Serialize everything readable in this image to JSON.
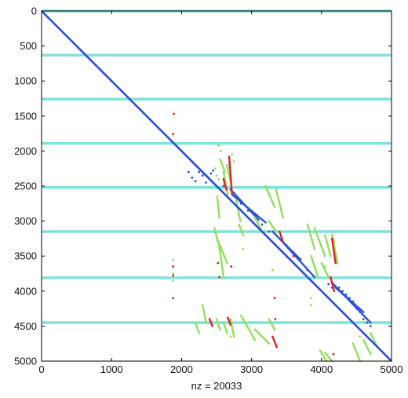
{
  "chart_data": {
    "type": "scatter",
    "title": "",
    "xlabel": "nz = 20033",
    "ylabel": "",
    "xlim": [
      0,
      5000
    ],
    "ylim": [
      0,
      5000
    ],
    "y_reversed": true,
    "grid": false,
    "legend": "none",
    "x_ticks": [
      0,
      1000,
      2000,
      3000,
      4000,
      5000
    ],
    "y_ticks": [
      0,
      500,
      1000,
      1500,
      2000,
      2500,
      3000,
      3500,
      4000,
      4500,
      5000
    ],
    "separators": {
      "color": "#7fe3dd",
      "y": [
        0,
        630,
        1260,
        1890,
        2520,
        3150,
        3810,
        4450
      ]
    },
    "diagonal": {
      "color": "#2a4fd8",
      "from": [
        0,
        0
      ],
      "to": [
        5000,
        5000
      ]
    },
    "series": [
      {
        "color": "#2a4fd8",
        "segments": [
          [
            2150,
            2150,
            2500,
            2500
          ],
          [
            2700,
            2550,
            3100,
            2980
          ],
          [
            2720,
            2620,
            3200,
            3020
          ],
          [
            3400,
            3250,
            3900,
            3800
          ],
          [
            3300,
            3150,
            3700,
            3550
          ],
          [
            4150,
            3880,
            4700,
            4450
          ],
          [
            4200,
            3950,
            4600,
            4300
          ]
        ],
        "points": [
          [
            2100,
            2300
          ],
          [
            2150,
            2380
          ],
          [
            2200,
            2430
          ],
          [
            2250,
            2300
          ],
          [
            2300,
            2350
          ],
          [
            2350,
            2450
          ],
          [
            2420,
            2320
          ],
          [
            2450,
            2280
          ],
          [
            2600,
            2500
          ],
          [
            2750,
            2600
          ],
          [
            2850,
            2750
          ],
          [
            2950,
            2850
          ],
          [
            3050,
            2950
          ],
          [
            3150,
            3050
          ],
          [
            3250,
            3150
          ],
          [
            3500,
            3350
          ],
          [
            3600,
            3450
          ],
          [
            3700,
            3550
          ],
          [
            3800,
            3700
          ],
          [
            4100,
            3900
          ],
          [
            4150,
            3950
          ],
          [
            4250,
            3950
          ],
          [
            4300,
            4000
          ],
          [
            4350,
            4050
          ],
          [
            4400,
            4100
          ],
          [
            4450,
            4150
          ],
          [
            4500,
            4250
          ],
          [
            4550,
            4300
          ],
          [
            4600,
            4400
          ],
          [
            4650,
            4450
          ],
          [
            4700,
            4500
          ]
        ]
      },
      {
        "color": "#8ee05a",
        "segments": [
          [
            2550,
            2120,
            2620,
            2300
          ],
          [
            2600,
            2300,
            2660,
            2620
          ],
          [
            2650,
            2200,
            2700,
            2450
          ],
          [
            2510,
            2650,
            2540,
            2950
          ],
          [
            2470,
            3100,
            2520,
            3300
          ],
          [
            2530,
            3300,
            2600,
            3800
          ],
          [
            2780,
            2700,
            2840,
            3000
          ],
          [
            2820,
            3050,
            2880,
            3200
          ],
          [
            3200,
            2500,
            3330,
            2800
          ],
          [
            3350,
            2550,
            3450,
            2950
          ],
          [
            3050,
            2950,
            3150,
            3150
          ],
          [
            3250,
            3000,
            3350,
            3150
          ],
          [
            3800,
            3050,
            3900,
            3400
          ],
          [
            3900,
            3100,
            4050,
            3500
          ],
          [
            4050,
            3200,
            4130,
            3500
          ],
          [
            4150,
            3200,
            4180,
            3300
          ],
          [
            4170,
            3300,
            4230,
            3600
          ],
          [
            3850,
            3500,
            3950,
            3800
          ],
          [
            4000,
            3600,
            4100,
            3800
          ],
          [
            2300,
            4200,
            2350,
            4450
          ],
          [
            2200,
            4450,
            2250,
            4600
          ],
          [
            2500,
            4400,
            2550,
            4550
          ],
          [
            2600,
            4450,
            2650,
            4600
          ],
          [
            2850,
            4350,
            3050,
            4700
          ],
          [
            3050,
            4550,
            3250,
            4750
          ],
          [
            3250,
            4400,
            3330,
            4550
          ],
          [
            3980,
            4850,
            4070,
            5000
          ],
          [
            4050,
            4880,
            4150,
            5000
          ],
          [
            4450,
            4750,
            4550,
            5000
          ],
          [
            4600,
            4700,
            4700,
            4900
          ],
          [
            4700,
            4600,
            4800,
            4800
          ],
          [
            2700,
            4400,
            2750,
            4650
          ],
          [
            2550,
            3350,
            2650,
            3600
          ]
        ],
        "points": [
          [
            2530,
            1920
          ],
          [
            2560,
            2000
          ],
          [
            2480,
            2250
          ],
          [
            2500,
            2350
          ],
          [
            2530,
            2400
          ],
          [
            2720,
            2050
          ],
          [
            2750,
            2150
          ],
          [
            4050,
            3650
          ],
          [
            2880,
            3400
          ],
          [
            3300,
            3700
          ],
          [
            2700,
            4650
          ],
          [
            4550,
            4650
          ],
          [
            1880,
            3550
          ],
          [
            1880,
            3650
          ],
          [
            1880,
            3750
          ],
          [
            1880,
            3850
          ],
          [
            3850,
            4100
          ],
          [
            3850,
            4200
          ]
        ]
      },
      {
        "color": "#e02020",
        "segments": [
          [
            2680,
            2080,
            2720,
            2600
          ],
          [
            2600,
            2400,
            2640,
            2550
          ],
          [
            3400,
            3150,
            3450,
            3300
          ],
          [
            4150,
            3250,
            4200,
            3600
          ],
          [
            4130,
            3800,
            4180,
            4000
          ],
          [
            2400,
            4400,
            2440,
            4500
          ],
          [
            2660,
            4380,
            2700,
            4480
          ],
          [
            3300,
            4650,
            3360,
            4800
          ]
        ],
        "points": [
          [
            1890,
            1470
          ],
          [
            1880,
            1760
          ],
          [
            1880,
            3650
          ],
          [
            1880,
            3780
          ],
          [
            1880,
            4100
          ],
          [
            2520,
            3600
          ],
          [
            2540,
            3800
          ],
          [
            3330,
            4100
          ],
          [
            3340,
            4400
          ],
          [
            4170,
            4900
          ],
          [
            2710,
            3650
          ],
          [
            3600,
            3500
          ]
        ]
      }
    ]
  }
}
